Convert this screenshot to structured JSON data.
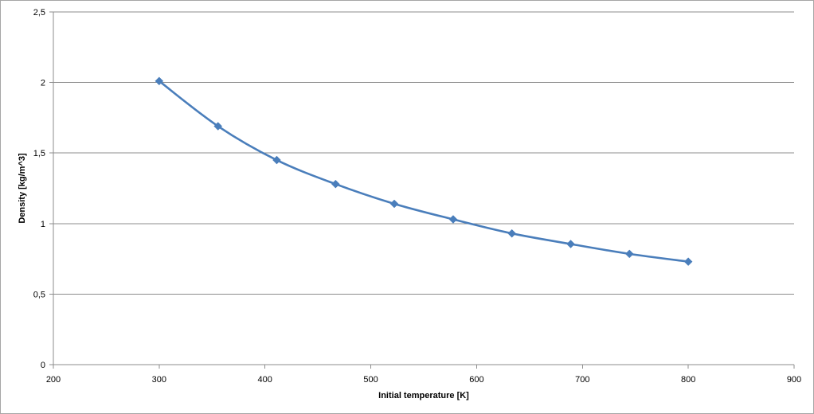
{
  "chart_data": {
    "type": "line",
    "title": "",
    "xlabel": "Initial temperature [K]",
    "ylabel": "Density [kg/m^3]",
    "xlim": [
      200,
      900
    ],
    "ylim": [
      0,
      2.5
    ],
    "x_ticks": [
      "200",
      "300",
      "400",
      "500",
      "600",
      "700",
      "800",
      "900"
    ],
    "y_ticks": [
      "0",
      "0,5",
      "1",
      "1,5",
      "2",
      "2,5"
    ],
    "grid": true,
    "legend": "none",
    "series": [
      {
        "color": "#4a7ebb",
        "marker": "diamond",
        "smooth": true,
        "x": [
          300,
          355.6,
          411.1,
          466.7,
          522.2,
          577.8,
          633.3,
          688.9,
          744.4,
          800
        ],
        "y": [
          2.01,
          1.69,
          1.45,
          1.28,
          1.14,
          1.03,
          0.93,
          0.855,
          0.785,
          0.73
        ]
      }
    ]
  }
}
